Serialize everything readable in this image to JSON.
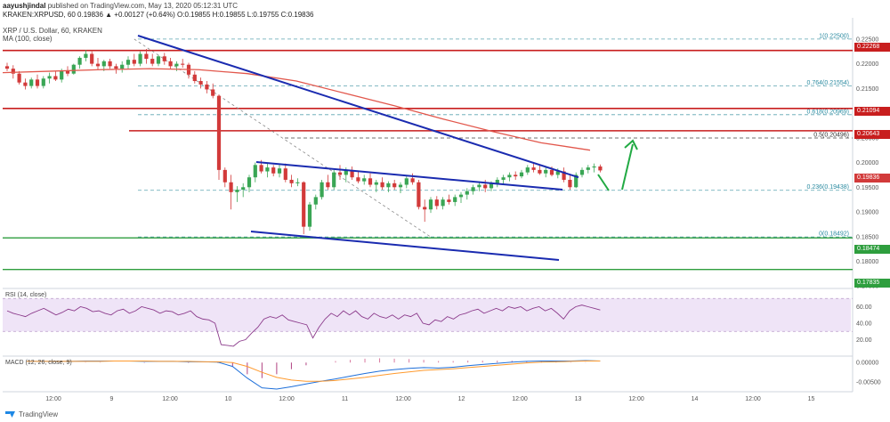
{
  "header": {
    "publisher": "aayushjindal",
    "published_text": "published on TradingView.com, May 13, 2020 05:12:31 UTC",
    "ticker_line": "KRAKEN:XRPUSD, 60  0.19836  ▲ +0.00127 (+0.64%)  O:0.19855  H:0.19855  L:0.19755  C:0.19836",
    "symbol_desc": "XRP / U.S. Dollar, 60, KRAKEN",
    "ma_label": "MA (100, close)"
  },
  "rsi_label": "RSI (14, close)",
  "macd_label": "MACD (12, 26, close, 9)",
  "footer_brand": "TradingView",
  "colors": {
    "up": "#3aa655",
    "down": "#d23a3a",
    "trend": "#1a2bb0",
    "ma": "#e2574c",
    "resist": "#c81e1e",
    "support": "#2e9e3e",
    "fib": "#5ba3b0",
    "rsi_fill": "#efe4f7",
    "rsi_line": "#8b3a8b",
    "arrow": "#22aa44"
  },
  "chart_data": {
    "type": "candlestick",
    "price_axis": {
      "ticks": [
        0.225,
        0.22,
        0.215,
        0.21,
        0.205,
        0.2,
        0.195,
        0.19,
        0.185,
        0.18,
        0.175
      ],
      "tick_labels": [
        "0.22500",
        "0.22000",
        "0.21500",
        "0.21000",
        "0.20500",
        "0.20000",
        "0.19500",
        "0.19000",
        "0.18500",
        "0.18000",
        "0.17500"
      ]
    },
    "time_axis": {
      "labels": [
        "12:00",
        "9",
        "12:00",
        "10",
        "12:00",
        "11",
        "12:00",
        "12",
        "12:00",
        "13",
        "12:00",
        "14",
        "12:00",
        "15"
      ]
    },
    "fib_levels": [
      {
        "label": "1(0.22500)",
        "price": 0.225
      },
      {
        "label": "0.764(0.21554)",
        "price": 0.21554
      },
      {
        "label": "0.618(0.20969)",
        "price": 0.20969
      },
      {
        "label": "0.5(0.20496)",
        "price": 0.20496
      },
      {
        "label": "0.236(0.19438)",
        "price": 0.19438
      },
      {
        "label": "0(0.18492)",
        "price": 0.18492
      }
    ],
    "resistance_levels": [
      {
        "label": "0.22268",
        "price": 0.22268
      },
      {
        "label": "0.21094",
        "price": 0.21094
      },
      {
        "label": "0.20643",
        "price": 0.20643
      }
    ],
    "support_levels": [
      {
        "label": "0.18474",
        "price": 0.18474
      },
      {
        "label": "0.17835",
        "price": 0.17835
      }
    ],
    "current_price": {
      "label": "0.19836",
      "price": 0.19836
    },
    "candles": [
      {
        "o": 0.2195,
        "h": 0.2202,
        "l": 0.2185,
        "c": 0.219
      },
      {
        "o": 0.219,
        "h": 0.2197,
        "l": 0.217,
        "c": 0.218
      },
      {
        "o": 0.218,
        "h": 0.2185,
        "l": 0.2158,
        "c": 0.2162
      },
      {
        "o": 0.2162,
        "h": 0.217,
        "l": 0.2148,
        "c": 0.2155
      },
      {
        "o": 0.2155,
        "h": 0.2172,
        "l": 0.215,
        "c": 0.2168
      },
      {
        "o": 0.2168,
        "h": 0.2178,
        "l": 0.215,
        "c": 0.2155
      },
      {
        "o": 0.2155,
        "h": 0.2175,
        "l": 0.215,
        "c": 0.217
      },
      {
        "o": 0.217,
        "h": 0.2182,
        "l": 0.216,
        "c": 0.2175
      },
      {
        "o": 0.2175,
        "h": 0.2185,
        "l": 0.2165,
        "c": 0.2168
      },
      {
        "o": 0.2168,
        "h": 0.219,
        "l": 0.2162,
        "c": 0.2185
      },
      {
        "o": 0.2185,
        "h": 0.2195,
        "l": 0.2175,
        "c": 0.218
      },
      {
        "o": 0.218,
        "h": 0.22,
        "l": 0.2178,
        "c": 0.2198
      },
      {
        "o": 0.2198,
        "h": 0.2215,
        "l": 0.219,
        "c": 0.2212
      },
      {
        "o": 0.2212,
        "h": 0.2228,
        "l": 0.2205,
        "c": 0.222
      },
      {
        "o": 0.222,
        "h": 0.2225,
        "l": 0.2195,
        "c": 0.22
      },
      {
        "o": 0.22,
        "h": 0.2212,
        "l": 0.2188,
        "c": 0.2195
      },
      {
        "o": 0.2195,
        "h": 0.2208,
        "l": 0.2185,
        "c": 0.2205
      },
      {
        "o": 0.2205,
        "h": 0.221,
        "l": 0.219,
        "c": 0.2195
      },
      {
        "o": 0.2195,
        "h": 0.22,
        "l": 0.218,
        "c": 0.219
      },
      {
        "o": 0.219,
        "h": 0.2205,
        "l": 0.2182,
        "c": 0.2198
      },
      {
        "o": 0.2198,
        "h": 0.2215,
        "l": 0.219,
        "c": 0.2208
      },
      {
        "o": 0.2208,
        "h": 0.222,
        "l": 0.2195,
        "c": 0.22
      },
      {
        "o": 0.22,
        "h": 0.2225,
        "l": 0.2195,
        "c": 0.222
      },
      {
        "o": 0.222,
        "h": 0.223,
        "l": 0.22,
        "c": 0.221
      },
      {
        "o": 0.221,
        "h": 0.222,
        "l": 0.2195,
        "c": 0.22
      },
      {
        "o": 0.22,
        "h": 0.2218,
        "l": 0.2195,
        "c": 0.2215
      },
      {
        "o": 0.2215,
        "h": 0.2222,
        "l": 0.2198,
        "c": 0.2205
      },
      {
        "o": 0.2205,
        "h": 0.2212,
        "l": 0.219,
        "c": 0.2195
      },
      {
        "o": 0.2195,
        "h": 0.2205,
        "l": 0.2185,
        "c": 0.22
      },
      {
        "o": 0.22,
        "h": 0.221,
        "l": 0.2192,
        "c": 0.2198
      },
      {
        "o": 0.2198,
        "h": 0.2202,
        "l": 0.217,
        "c": 0.2178
      },
      {
        "o": 0.2178,
        "h": 0.2185,
        "l": 0.216,
        "c": 0.2165
      },
      {
        "o": 0.2165,
        "h": 0.2172,
        "l": 0.215,
        "c": 0.2158
      },
      {
        "o": 0.2158,
        "h": 0.2165,
        "l": 0.214,
        "c": 0.2148
      },
      {
        "o": 0.2148,
        "h": 0.216,
        "l": 0.213,
        "c": 0.2135
      },
      {
        "o": 0.2135,
        "h": 0.2138,
        "l": 0.1965,
        "c": 0.1985
      },
      {
        "o": 0.1985,
        "h": 0.199,
        "l": 0.195,
        "c": 0.196
      },
      {
        "o": 0.196,
        "h": 0.1975,
        "l": 0.1905,
        "c": 0.194
      },
      {
        "o": 0.194,
        "h": 0.1952,
        "l": 0.192,
        "c": 0.1945
      },
      {
        "o": 0.1945,
        "h": 0.1958,
        "l": 0.193,
        "c": 0.195
      },
      {
        "o": 0.195,
        "h": 0.1975,
        "l": 0.194,
        "c": 0.197
      },
      {
        "o": 0.197,
        "h": 0.2,
        "l": 0.196,
        "c": 0.1995
      },
      {
        "o": 0.1995,
        "h": 0.2005,
        "l": 0.1978,
        "c": 0.1982
      },
      {
        "o": 0.1982,
        "h": 0.1998,
        "l": 0.197,
        "c": 0.199
      },
      {
        "o": 0.199,
        "h": 0.1995,
        "l": 0.1972,
        "c": 0.1978
      },
      {
        "o": 0.1978,
        "h": 0.1995,
        "l": 0.197,
        "c": 0.1988
      },
      {
        "o": 0.1988,
        "h": 0.1998,
        "l": 0.196,
        "c": 0.1965
      },
      {
        "o": 0.1965,
        "h": 0.1975,
        "l": 0.195,
        "c": 0.1958
      },
      {
        "o": 0.1958,
        "h": 0.1968,
        "l": 0.1952,
        "c": 0.196
      },
      {
        "o": 0.196,
        "h": 0.1962,
        "l": 0.1855,
        "c": 0.187
      },
      {
        "o": 0.187,
        "h": 0.192,
        "l": 0.1862,
        "c": 0.1915
      },
      {
        "o": 0.1915,
        "h": 0.1935,
        "l": 0.1905,
        "c": 0.193
      },
      {
        "o": 0.193,
        "h": 0.1965,
        "l": 0.1925,
        "c": 0.196
      },
      {
        "o": 0.196,
        "h": 0.1975,
        "l": 0.1945,
        "c": 0.195
      },
      {
        "o": 0.195,
        "h": 0.1985,
        "l": 0.1945,
        "c": 0.198
      },
      {
        "o": 0.198,
        "h": 0.1995,
        "l": 0.1965,
        "c": 0.1975
      },
      {
        "o": 0.1975,
        "h": 0.199,
        "l": 0.196,
        "c": 0.1985
      },
      {
        "o": 0.1985,
        "h": 0.1992,
        "l": 0.1965,
        "c": 0.197
      },
      {
        "o": 0.197,
        "h": 0.1982,
        "l": 0.1958,
        "c": 0.1962
      },
      {
        "o": 0.1962,
        "h": 0.1975,
        "l": 0.1955,
        "c": 0.1968
      },
      {
        "o": 0.1968,
        "h": 0.1978,
        "l": 0.195,
        "c": 0.1955
      },
      {
        "o": 0.1955,
        "h": 0.1965,
        "l": 0.194,
        "c": 0.196
      },
      {
        "o": 0.196,
        "h": 0.197,
        "l": 0.1945,
        "c": 0.195
      },
      {
        "o": 0.195,
        "h": 0.1962,
        "l": 0.194,
        "c": 0.1958
      },
      {
        "o": 0.1958,
        "h": 0.1965,
        "l": 0.1945,
        "c": 0.195
      },
      {
        "o": 0.195,
        "h": 0.196,
        "l": 0.1938,
        "c": 0.1955
      },
      {
        "o": 0.1955,
        "h": 0.1972,
        "l": 0.1948,
        "c": 0.1968
      },
      {
        "o": 0.1968,
        "h": 0.1978,
        "l": 0.1955,
        "c": 0.196
      },
      {
        "o": 0.196,
        "h": 0.1965,
        "l": 0.1905,
        "c": 0.191
      },
      {
        "o": 0.191,
        "h": 0.1925,
        "l": 0.188,
        "c": 0.1905
      },
      {
        "o": 0.1905,
        "h": 0.193,
        "l": 0.1898,
        "c": 0.1925
      },
      {
        "o": 0.1925,
        "h": 0.1932,
        "l": 0.1905,
        "c": 0.1912
      },
      {
        "o": 0.1912,
        "h": 0.193,
        "l": 0.1905,
        "c": 0.1925
      },
      {
        "o": 0.1925,
        "h": 0.1935,
        "l": 0.1915,
        "c": 0.192
      },
      {
        "o": 0.192,
        "h": 0.1935,
        "l": 0.1912,
        "c": 0.193
      },
      {
        "o": 0.193,
        "h": 0.194,
        "l": 0.1918,
        "c": 0.1935
      },
      {
        "o": 0.1935,
        "h": 0.1948,
        "l": 0.1925,
        "c": 0.1942
      },
      {
        "o": 0.1942,
        "h": 0.1955,
        "l": 0.1935,
        "c": 0.195
      },
      {
        "o": 0.195,
        "h": 0.1962,
        "l": 0.1942,
        "c": 0.1955
      },
      {
        "o": 0.1955,
        "h": 0.1965,
        "l": 0.194,
        "c": 0.1948
      },
      {
        "o": 0.1948,
        "h": 0.1962,
        "l": 0.1942,
        "c": 0.1958
      },
      {
        "o": 0.1958,
        "h": 0.197,
        "l": 0.195,
        "c": 0.1965
      },
      {
        "o": 0.1965,
        "h": 0.1975,
        "l": 0.1955,
        "c": 0.197
      },
      {
        "o": 0.197,
        "h": 0.198,
        "l": 0.1962,
        "c": 0.1975
      },
      {
        "o": 0.1975,
        "h": 0.1982,
        "l": 0.1965,
        "c": 0.1972
      },
      {
        "o": 0.1972,
        "h": 0.1985,
        "l": 0.1968,
        "c": 0.198
      },
      {
        "o": 0.198,
        "h": 0.1995,
        "l": 0.1975,
        "c": 0.199
      },
      {
        "o": 0.199,
        "h": 0.2,
        "l": 0.198,
        "c": 0.1985
      },
      {
        "o": 0.1985,
        "h": 0.1995,
        "l": 0.1975,
        "c": 0.1978
      },
      {
        "o": 0.1978,
        "h": 0.199,
        "l": 0.197,
        "c": 0.1985
      },
      {
        "o": 0.1985,
        "h": 0.1992,
        "l": 0.1972,
        "c": 0.1975
      },
      {
        "o": 0.1975,
        "h": 0.1988,
        "l": 0.1968,
        "c": 0.1982
      },
      {
        "o": 0.1982,
        "h": 0.199,
        "l": 0.196,
        "c": 0.1965
      },
      {
        "o": 0.1965,
        "h": 0.1975,
        "l": 0.1945,
        "c": 0.195
      },
      {
        "o": 0.195,
        "h": 0.198,
        "l": 0.1948,
        "c": 0.1975
      },
      {
        "o": 0.1975,
        "h": 0.199,
        "l": 0.197,
        "c": 0.1985
      },
      {
        "o": 0.1985,
        "h": 0.1995,
        "l": 0.1978,
        "c": 0.199
      },
      {
        "o": 0.199,
        "h": 0.1998,
        "l": 0.198,
        "c": 0.1992
      },
      {
        "o": 0.1992,
        "h": 0.1996,
        "l": 0.198,
        "c": 0.1984
      }
    ],
    "ma_100": [
      0.2182,
      0.2185,
      0.2188,
      0.219,
      0.2188,
      0.218,
      0.2165,
      0.214,
      0.2115,
      0.2088,
      0.2063,
      0.204,
      0.2025
    ],
    "rsi": {
      "levels": [
        70,
        30
      ],
      "ticks": [
        60,
        40,
        20
      ],
      "values": [
        55,
        52,
        50,
        48,
        52,
        55,
        58,
        54,
        50,
        53,
        57,
        55,
        60,
        58,
        54,
        55,
        52,
        50,
        55,
        57,
        52,
        55,
        60,
        58,
        56,
        52,
        55,
        54,
        50,
        52,
        55,
        48,
        45,
        44,
        40,
        14,
        13,
        12,
        18,
        20,
        28,
        35,
        45,
        48,
        46,
        50,
        44,
        42,
        40,
        38,
        22,
        35,
        45,
        52,
        48,
        55,
        50,
        55,
        48,
        45,
        52,
        48,
        46,
        50,
        45,
        50,
        48,
        52,
        40,
        38,
        44,
        42,
        48,
        45,
        50,
        52,
        55,
        57,
        52,
        55,
        58,
        55,
        60,
        58,
        60,
        55,
        58,
        60,
        55,
        58,
        52,
        45,
        55,
        60,
        62,
        60,
        58,
        56
      ],
      "y_range": [
        0,
        80
      ]
    },
    "macd": {
      "ticks_labels": [
        "0.00000",
        "-0.00500"
      ],
      "ticks": [
        0,
        -0.005
      ],
      "macd_line": [
        0.0003,
        0.0003,
        0.0003,
        0.0003,
        0.0004,
        0.0004,
        0.0004,
        0.0004,
        0.0003,
        0.0003,
        0.0003,
        0.0002,
        0.0002,
        0.0001,
        -0.001,
        -0.004,
        -0.0065,
        -0.0068,
        -0.0062,
        -0.0055,
        -0.0048,
        -0.0042,
        -0.0035,
        -0.0028,
        -0.0022,
        -0.0018,
        -0.0015,
        -0.0013,
        -0.0014,
        -0.0012,
        -0.0008,
        -0.0005,
        -0.0002,
        0.0001,
        0.0003,
        0.0004,
        0.0004,
        0.0004,
        0.0005,
        0.0004
      ],
      "signal_line": [
        0.0003,
        0.0003,
        0.0003,
        0.0003,
        0.0003,
        0.0003,
        0.0004,
        0.0004,
        0.0004,
        0.0003,
        0.0003,
        0.0003,
        0.0002,
        0.0002,
        0.0,
        -0.001,
        -0.0025,
        -0.0038,
        -0.0045,
        -0.0048,
        -0.0048,
        -0.0046,
        -0.0042,
        -0.0038,
        -0.0033,
        -0.0028,
        -0.0024,
        -0.002,
        -0.0018,
        -0.0016,
        -0.0013,
        -0.001,
        -0.0007,
        -0.0004,
        -0.0001,
        0.0001,
        0.0002,
        0.0003,
        0.0004,
        0.0004
      ],
      "y_range": [
        -0.0075,
        0.0012
      ]
    }
  }
}
